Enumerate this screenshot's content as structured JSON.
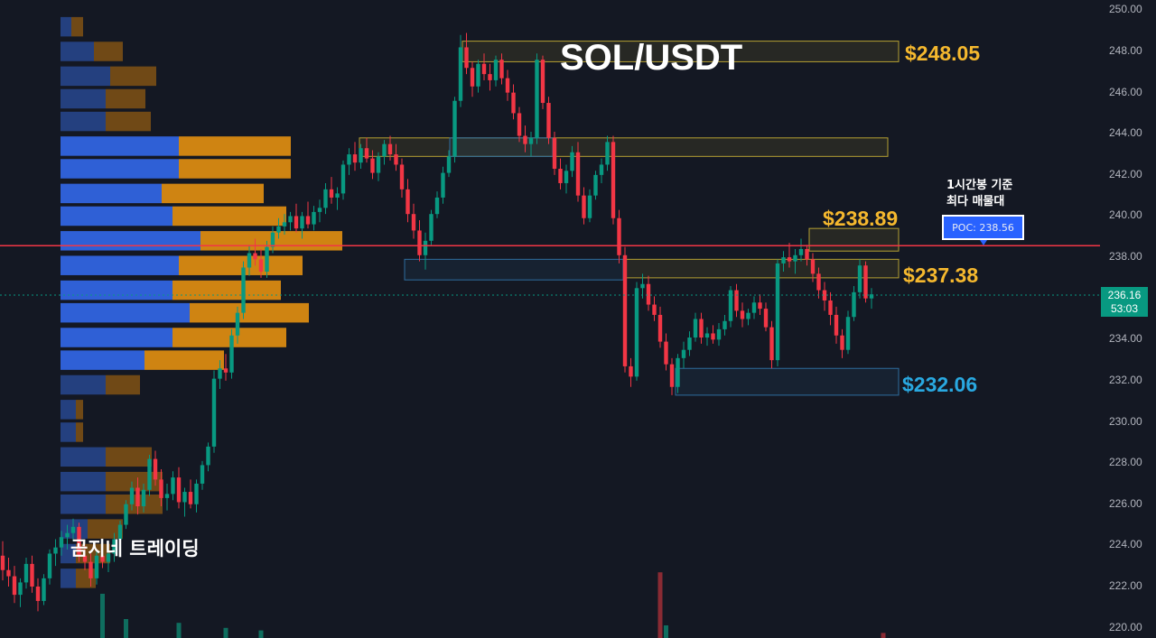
{
  "chart_data": {
    "type": "candlestick",
    "title": "SOL/USDT",
    "watermark": "곰지네 트레이딩",
    "y_axis": {
      "range": [
        219.5,
        250.5
      ],
      "ticks": [
        "250.00",
        "248.00",
        "246.00",
        "244.00",
        "242.00",
        "240.00",
        "238.00",
        "236.00",
        "234.00",
        "232.00",
        "230.00",
        "228.00",
        "226.00",
        "224.00",
        "222.00",
        "220.00"
      ]
    },
    "current_price": {
      "value": "236.16",
      "countdown": "53:03",
      "color": "#089981"
    },
    "poc_line": {
      "value": 238.56,
      "color": "#f23645"
    },
    "poc_label": "POC: 238.56",
    "poc_note": [
      "1시간봉 기준",
      "최다 매물대"
    ],
    "levels": [
      {
        "label": "$248.05",
        "color": "#f5b82e"
      },
      {
        "label": "$238.89",
        "color": "#f5b82e"
      },
      {
        "label": "$237.38",
        "color": "#f5b82e"
      },
      {
        "label": "$232.06",
        "color": "#29a8e0"
      }
    ],
    "zones": [
      {
        "type": "resistance",
        "from": 247.5,
        "to": 248.5,
        "color": "#b5a032"
      },
      {
        "type": "resistance",
        "from": 242.9,
        "to": 243.8,
        "color": "#b5a032"
      },
      {
        "type": "support",
        "from": 242.9,
        "to": 243.8,
        "color": "#2e6d9e"
      },
      {
        "type": "resistance",
        "from": 238.3,
        "to": 239.4,
        "color": "#b5a032"
      },
      {
        "type": "resistance",
        "from": 237.0,
        "to": 237.9,
        "color": "#b5a032"
      },
      {
        "type": "support",
        "from": 236.9,
        "to": 237.9,
        "color": "#2e6d9e"
      },
      {
        "type": "support",
        "from": 231.3,
        "to": 232.6,
        "color": "#2e6d9e"
      }
    ],
    "volume_profile": {
      "bins": [
        {
          "price": 249.2,
          "buy": 12,
          "sell": 13
        },
        {
          "price": 248.0,
          "buy": 37,
          "sell": 32
        },
        {
          "price": 246.8,
          "buy": 55,
          "sell": 51
        },
        {
          "price": 245.7,
          "buy": 50,
          "sell": 44
        },
        {
          "price": 244.6,
          "buy": 50,
          "sell": 50
        },
        {
          "price": 243.4,
          "buy": 131,
          "sell": 124
        },
        {
          "price": 242.3,
          "buy": 131,
          "sell": 124
        },
        {
          "price": 241.1,
          "buy": 112,
          "sell": 113
        },
        {
          "price": 240.0,
          "buy": 124,
          "sell": 126
        },
        {
          "price": 238.8,
          "buy": 155,
          "sell": 157
        },
        {
          "price": 237.6,
          "buy": 131,
          "sell": 137
        },
        {
          "price": 236.4,
          "buy": 124,
          "sell": 120
        },
        {
          "price": 235.3,
          "buy": 143,
          "sell": 132
        },
        {
          "price": 234.1,
          "buy": 124,
          "sell": 126
        },
        {
          "price": 233.0,
          "buy": 93,
          "sell": 88
        },
        {
          "price": 231.8,
          "buy": 50,
          "sell": 38
        },
        {
          "price": 230.6,
          "buy": 17,
          "sell": 8
        },
        {
          "price": 229.5,
          "buy": 17,
          "sell": 8
        },
        {
          "price": 228.3,
          "buy": 50,
          "sell": 51
        },
        {
          "price": 227.1,
          "buy": 50,
          "sell": 63
        },
        {
          "price": 226.0,
          "buy": 50,
          "sell": 63
        },
        {
          "price": 224.8,
          "buy": 30,
          "sell": 39
        },
        {
          "price": 223.6,
          "buy": 17,
          "sell": 38
        },
        {
          "price": 222.4,
          "buy": 17,
          "sell": 22
        }
      ]
    },
    "candles": [
      [
        223.5,
        224.2,
        222.3,
        222.8
      ],
      [
        222.8,
        223.4,
        222.0,
        222.5
      ],
      [
        222.5,
        223.0,
        221.2,
        221.6
      ],
      [
        221.6,
        222.4,
        221.0,
        222.2
      ],
      [
        222.2,
        223.4,
        221.9,
        223.1
      ],
      [
        223.1,
        223.5,
        221.7,
        222.0
      ],
      [
        222.0,
        222.4,
        220.8,
        221.3
      ],
      [
        221.3,
        222.6,
        221.1,
        222.4
      ],
      [
        222.4,
        223.8,
        222.1,
        223.6
      ],
      [
        223.6,
        224.3,
        223.0,
        223.9
      ],
      [
        223.9,
        224.7,
        223.5,
        224.4
      ],
      [
        224.4,
        225.0,
        223.8,
        224.6
      ],
      [
        224.6,
        225.3,
        224.2,
        224.9
      ],
      [
        224.9,
        225.1,
        223.2,
        223.5
      ],
      [
        223.5,
        224.0,
        222.8,
        223.2
      ],
      [
        223.2,
        223.6,
        222.0,
        222.4
      ],
      [
        222.4,
        223.8,
        222.1,
        223.5
      ],
      [
        223.5,
        224.1,
        222.9,
        223.2
      ],
      [
        223.2,
        223.9,
        222.7,
        223.6
      ],
      [
        223.6,
        224.6,
        223.2,
        224.3
      ],
      [
        224.3,
        225.2,
        224.0,
        225.0
      ],
      [
        225.0,
        226.2,
        224.8,
        226.0
      ],
      [
        226.0,
        227.1,
        225.7,
        226.8
      ],
      [
        226.8,
        227.3,
        225.5,
        225.9
      ],
      [
        225.9,
        227.0,
        225.6,
        226.7
      ],
      [
        226.7,
        228.4,
        226.4,
        228.2
      ],
      [
        228.2,
        228.6,
        226.9,
        227.2
      ],
      [
        227.2,
        227.7,
        225.9,
        226.3
      ],
      [
        226.3,
        227.0,
        225.7,
        226.5
      ],
      [
        226.5,
        227.6,
        226.2,
        227.3
      ],
      [
        227.3,
        227.8,
        225.8,
        226.1
      ],
      [
        226.1,
        226.8,
        225.4,
        226.6
      ],
      [
        226.6,
        227.2,
        225.8,
        226.0
      ],
      [
        226.0,
        227.2,
        225.6,
        227.0
      ],
      [
        227.0,
        228.1,
        226.7,
        227.9
      ],
      [
        227.9,
        229.0,
        227.6,
        228.8
      ],
      [
        228.8,
        232.5,
        228.5,
        232.1
      ],
      [
        232.1,
        233.0,
        231.6,
        232.6
      ],
      [
        232.6,
        233.3,
        232.0,
        232.4
      ],
      [
        232.4,
        234.5,
        232.1,
        234.2
      ],
      [
        234.2,
        235.6,
        233.8,
        235.3
      ],
      [
        235.3,
        237.8,
        235.0,
        237.5
      ],
      [
        237.5,
        238.6,
        237.1,
        238.2
      ],
      [
        238.2,
        238.9,
        237.6,
        237.9
      ],
      [
        237.9,
        238.4,
        237.0,
        237.3
      ],
      [
        237.3,
        238.8,
        237.0,
        238.5
      ],
      [
        238.5,
        239.5,
        238.2,
        239.2
      ],
      [
        239.2,
        239.9,
        238.9,
        239.5
      ],
      [
        239.5,
        240.1,
        239.1,
        239.7
      ],
      [
        239.7,
        240.2,
        239.3,
        240.0
      ],
      [
        240.0,
        240.6,
        239.2,
        239.4
      ],
      [
        239.4,
        240.2,
        238.9,
        240.0
      ],
      [
        240.0,
        240.7,
        239.4,
        239.6
      ],
      [
        239.6,
        240.5,
        239.3,
        240.2
      ],
      [
        240.2,
        240.8,
        239.7,
        240.4
      ],
      [
        240.4,
        241.6,
        240.1,
        241.3
      ],
      [
        241.3,
        241.9,
        240.6,
        240.9
      ],
      [
        240.9,
        241.4,
        240.3,
        241.1
      ],
      [
        241.1,
        242.7,
        240.8,
        242.5
      ],
      [
        242.5,
        243.3,
        242.0,
        243.0
      ],
      [
        243.0,
        243.6,
        242.2,
        242.6
      ],
      [
        242.6,
        243.5,
        242.3,
        243.3
      ],
      [
        243.3,
        243.8,
        242.6,
        242.8
      ],
      [
        242.8,
        243.2,
        241.8,
        242.1
      ],
      [
        242.1,
        243.1,
        241.7,
        242.9
      ],
      [
        242.9,
        243.7,
        242.5,
        243.5
      ],
      [
        243.5,
        243.9,
        242.7,
        243.0
      ],
      [
        243.0,
        243.5,
        242.2,
        242.5
      ],
      [
        242.5,
        242.8,
        240.9,
        241.3
      ],
      [
        241.3,
        241.8,
        239.7,
        240.1
      ],
      [
        240.1,
        240.6,
        238.9,
        239.3
      ],
      [
        239.3,
        239.8,
        237.8,
        238.1
      ],
      [
        238.1,
        239.2,
        237.4,
        238.8
      ],
      [
        238.8,
        240.3,
        238.6,
        240.1
      ],
      [
        240.1,
        241.2,
        239.9,
        240.9
      ],
      [
        240.9,
        242.4,
        240.6,
        242.1
      ],
      [
        242.1,
        243.2,
        241.9,
        242.9
      ],
      [
        242.9,
        245.8,
        242.6,
        245.6
      ],
      [
        245.6,
        248.8,
        245.3,
        248.2
      ],
      [
        248.2,
        248.9,
        246.9,
        247.2
      ],
      [
        247.2,
        247.5,
        245.8,
        246.3
      ],
      [
        246.3,
        247.6,
        246.0,
        247.4
      ],
      [
        247.4,
        247.9,
        246.6,
        246.9
      ],
      [
        246.9,
        247.4,
        246.1,
        246.6
      ],
      [
        246.6,
        247.8,
        246.3,
        247.6
      ],
      [
        247.6,
        247.9,
        246.4,
        246.7
      ],
      [
        246.7,
        247.1,
        245.6,
        246.0
      ],
      [
        246.0,
        246.4,
        244.7,
        245.0
      ],
      [
        245.0,
        245.3,
        243.6,
        243.9
      ],
      [
        243.9,
        244.4,
        243.1,
        243.5
      ],
      [
        243.5,
        244.1,
        242.9,
        243.8
      ],
      [
        243.8,
        247.9,
        243.5,
        247.6
      ],
      [
        247.6,
        247.8,
        245.2,
        245.5
      ],
      [
        245.5,
        245.8,
        243.5,
        243.8
      ],
      [
        243.8,
        244.1,
        242.0,
        242.3
      ],
      [
        242.3,
        242.8,
        241.3,
        241.6
      ],
      [
        241.6,
        242.5,
        241.1,
        242.2
      ],
      [
        242.2,
        243.4,
        241.9,
        243.1
      ],
      [
        243.1,
        243.6,
        240.7,
        241.0
      ],
      [
        241.0,
        241.4,
        239.6,
        239.9
      ],
      [
        239.9,
        241.3,
        239.7,
        241.0
      ],
      [
        241.0,
        242.2,
        240.8,
        242.0
      ],
      [
        242.0,
        242.8,
        241.6,
        242.5
      ],
      [
        242.5,
        243.9,
        242.2,
        243.6
      ],
      [
        243.6,
        243.9,
        239.6,
        239.9
      ],
      [
        239.9,
        240.3,
        237.7,
        238.1
      ],
      [
        238.1,
        238.5,
        232.4,
        232.7
      ],
      [
        232.7,
        233.1,
        231.7,
        232.2
      ],
      [
        232.2,
        236.8,
        232.0,
        236.5
      ],
      [
        236.5,
        237.2,
        236.0,
        236.7
      ],
      [
        236.7,
        237.1,
        235.4,
        235.7
      ],
      [
        235.7,
        236.1,
        234.9,
        235.2
      ],
      [
        235.2,
        235.6,
        233.6,
        233.9
      ],
      [
        233.9,
        234.3,
        232.5,
        232.8
      ],
      [
        232.8,
        233.1,
        231.3,
        231.7
      ],
      [
        231.7,
        233.3,
        231.4,
        233.1
      ],
      [
        233.1,
        233.9,
        232.6,
        233.5
      ],
      [
        233.5,
        234.4,
        233.2,
        234.1
      ],
      [
        234.1,
        235.3,
        233.9,
        235.0
      ],
      [
        235.0,
        235.3,
        233.8,
        234.1
      ],
      [
        234.1,
        234.6,
        233.7,
        234.3
      ],
      [
        234.3,
        234.7,
        233.8,
        234.0
      ],
      [
        234.0,
        234.8,
        233.7,
        234.5
      ],
      [
        234.5,
        235.2,
        234.2,
        234.9
      ],
      [
        234.9,
        236.6,
        234.6,
        236.4
      ],
      [
        236.4,
        236.7,
        235.1,
        235.4
      ],
      [
        235.4,
        235.8,
        234.6,
        235.0
      ],
      [
        235.0,
        235.5,
        234.7,
        235.3
      ],
      [
        235.3,
        236.1,
        235.0,
        235.8
      ],
      [
        235.8,
        236.2,
        235.2,
        235.5
      ],
      [
        235.5,
        235.8,
        234.4,
        234.6
      ],
      [
        234.6,
        234.9,
        232.6,
        233.0
      ],
      [
        233.0,
        237.9,
        232.7,
        237.7
      ],
      [
        237.7,
        238.3,
        237.3,
        238.0
      ],
      [
        238.0,
        238.7,
        237.5,
        237.8
      ],
      [
        237.8,
        238.4,
        237.2,
        238.1
      ],
      [
        238.1,
        238.9,
        237.8,
        238.4
      ],
      [
        238.4,
        238.6,
        237.6,
        237.9
      ],
      [
        237.9,
        238.2,
        236.8,
        237.2
      ],
      [
        237.2,
        237.5,
        236.0,
        236.4
      ],
      [
        236.4,
        236.8,
        235.4,
        235.9
      ],
      [
        235.9,
        236.3,
        234.7,
        235.2
      ],
      [
        235.2,
        235.6,
        233.8,
        234.2
      ],
      [
        234.2,
        234.5,
        233.1,
        233.5
      ],
      [
        233.5,
        235.4,
        233.3,
        235.1
      ],
      [
        235.1,
        236.6,
        234.9,
        236.3
      ],
      [
        236.3,
        237.9,
        236.0,
        237.6
      ],
      [
        237.6,
        237.8,
        235.8,
        236.0
      ],
      [
        236.0,
        236.5,
        235.5,
        236.2
      ]
    ],
    "volume_bars": [
      {
        "i": 17,
        "v": 35,
        "up": true
      },
      {
        "i": 21,
        "v": 15,
        "up": true
      },
      {
        "i": 30,
        "v": 12,
        "up": true
      },
      {
        "i": 38,
        "v": 8,
        "up": true
      },
      {
        "i": 44,
        "v": 6,
        "up": true
      },
      {
        "i": 112,
        "v": 52,
        "up": false
      },
      {
        "i": 113,
        "v": 10,
        "up": true
      },
      {
        "i": 150,
        "v": 4,
        "up": false
      }
    ]
  }
}
